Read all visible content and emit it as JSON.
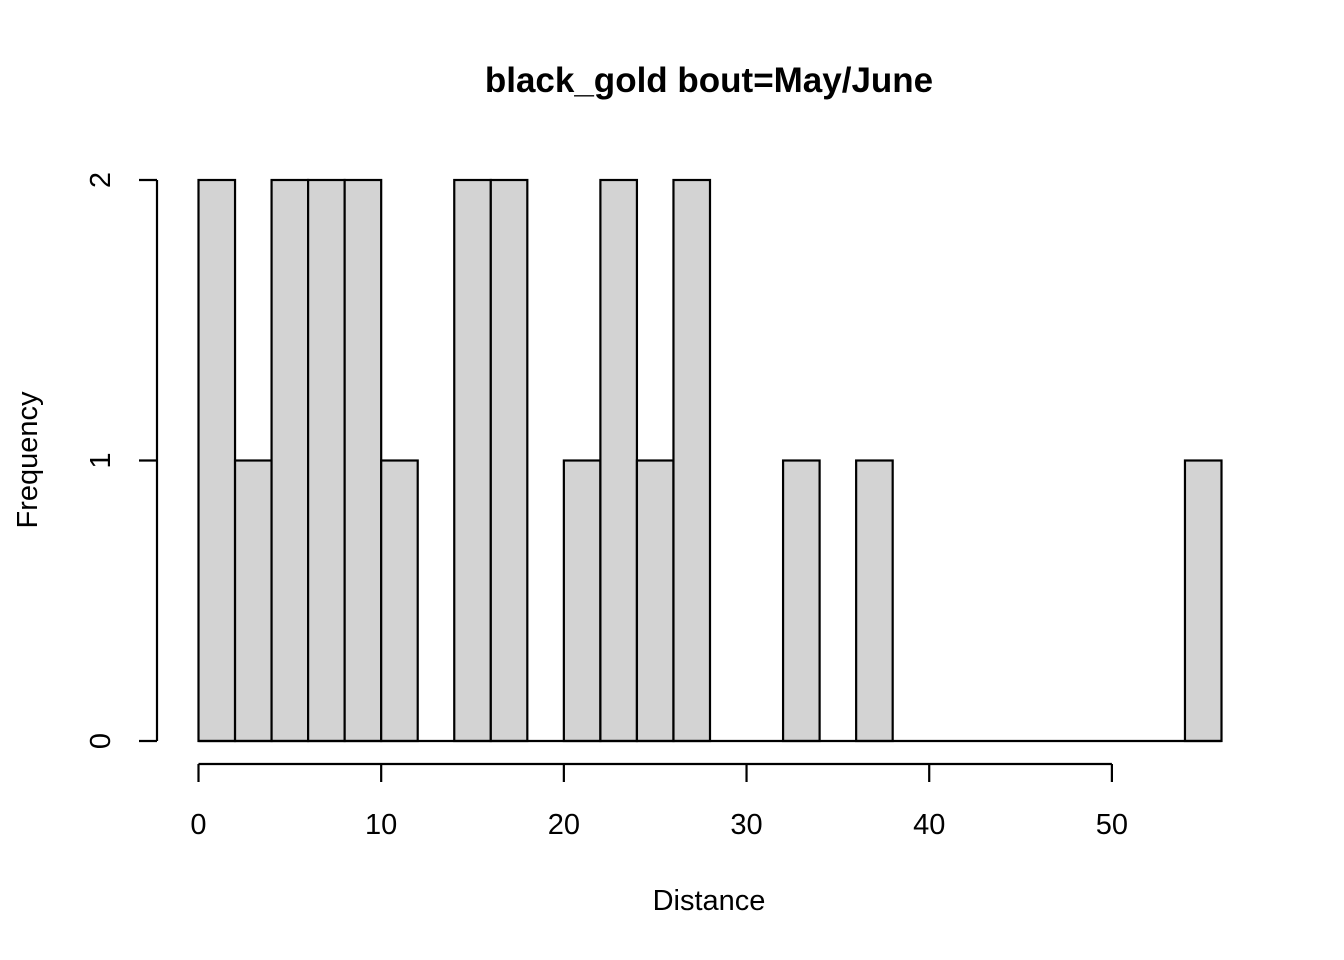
{
  "chart_data": {
    "type": "bar",
    "title": "black_gold  bout=May/June",
    "xlabel": "Distance",
    "ylabel": "Frequency",
    "bin_width": 2,
    "bins": [
      {
        "start": 0,
        "end": 2,
        "count": 2
      },
      {
        "start": 2,
        "end": 4,
        "count": 1
      },
      {
        "start": 4,
        "end": 6,
        "count": 2
      },
      {
        "start": 6,
        "end": 8,
        "count": 2
      },
      {
        "start": 8,
        "end": 10,
        "count": 2
      },
      {
        "start": 10,
        "end": 12,
        "count": 1
      },
      {
        "start": 12,
        "end": 14,
        "count": 0
      },
      {
        "start": 14,
        "end": 16,
        "count": 2
      },
      {
        "start": 16,
        "end": 18,
        "count": 2
      },
      {
        "start": 18,
        "end": 20,
        "count": 0
      },
      {
        "start": 20,
        "end": 22,
        "count": 1
      },
      {
        "start": 22,
        "end": 24,
        "count": 2
      },
      {
        "start": 24,
        "end": 26,
        "count": 1
      },
      {
        "start": 26,
        "end": 28,
        "count": 2
      },
      {
        "start": 28,
        "end": 30,
        "count": 0
      },
      {
        "start": 30,
        "end": 32,
        "count": 0
      },
      {
        "start": 32,
        "end": 34,
        "count": 1
      },
      {
        "start": 34,
        "end": 36,
        "count": 0
      },
      {
        "start": 36,
        "end": 38,
        "count": 1
      },
      {
        "start": 38,
        "end": 40,
        "count": 0
      },
      {
        "start": 40,
        "end": 42,
        "count": 0
      },
      {
        "start": 42,
        "end": 44,
        "count": 0
      },
      {
        "start": 44,
        "end": 46,
        "count": 0
      },
      {
        "start": 46,
        "end": 48,
        "count": 0
      },
      {
        "start": 48,
        "end": 50,
        "count": 0
      },
      {
        "start": 50,
        "end": 52,
        "count": 0
      },
      {
        "start": 52,
        "end": 54,
        "count": 0
      },
      {
        "start": 54,
        "end": 56,
        "count": 1
      }
    ],
    "xlim": [
      0,
      56
    ],
    "ylim": [
      0,
      2
    ],
    "xticks": [
      "0",
      "10",
      "20",
      "30",
      "40",
      "50"
    ],
    "yticks": [
      "0",
      "1",
      "2"
    ],
    "grid": false,
    "legend": "none",
    "colors": {
      "bar_fill": "#d3d3d3",
      "bar_stroke": "#000000"
    }
  }
}
